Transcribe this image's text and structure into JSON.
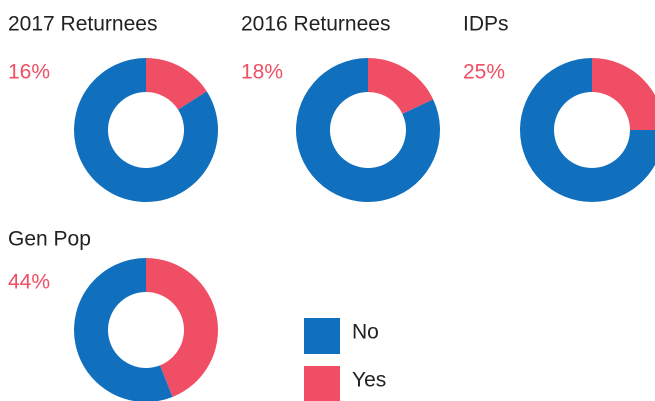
{
  "chart_data": [
    {
      "type": "donut",
      "title": "2017 Returnees",
      "categories": [
        "No",
        "Yes"
      ],
      "values": [
        84,
        16
      ],
      "value_labels": [
        null,
        "16%"
      ],
      "colors": [
        "#1170bd",
        "#f04e64"
      ]
    },
    {
      "type": "donut",
      "title": "2016 Returnees",
      "categories": [
        "No",
        "Yes"
      ],
      "values": [
        82,
        18
      ],
      "value_labels": [
        null,
        "18%"
      ],
      "colors": [
        "#1170bd",
        "#f04e64"
      ]
    },
    {
      "type": "donut",
      "title": "IDPs",
      "categories": [
        "No",
        "Yes"
      ],
      "values": [
        75,
        25
      ],
      "value_labels": [
        null,
        "25%"
      ],
      "colors": [
        "#1170bd",
        "#f04e64"
      ]
    },
    {
      "type": "donut",
      "title": "Gen Pop",
      "categories": [
        "No",
        "Yes"
      ],
      "values": [
        56,
        44
      ],
      "value_labels": [
        null,
        "44%"
      ],
      "colors": [
        "#1170bd",
        "#f04e64"
      ]
    }
  ]
}
